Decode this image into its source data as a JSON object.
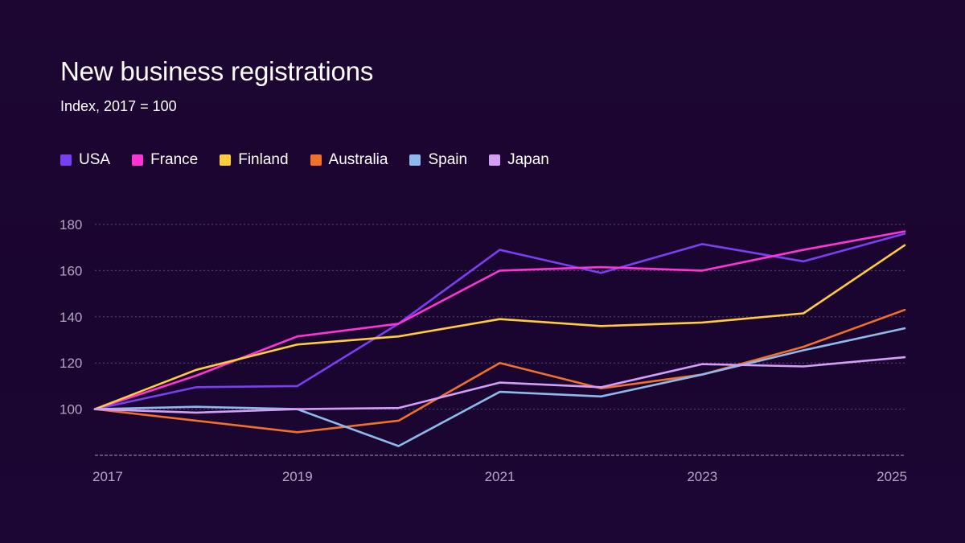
{
  "chart_data": {
    "type": "line",
    "title": "New business registrations",
    "subtitle": "Index, 2017 = 100",
    "x": [
      2017,
      2018,
      2019,
      2020,
      2021,
      2022,
      2023,
      2024,
      2025
    ],
    "x_tick_labels": [
      "2017",
      "2019",
      "2021",
      "2023",
      "2025"
    ],
    "y_tick_labels": [
      "100",
      "120",
      "140",
      "160",
      "180"
    ],
    "ylim": [
      80,
      180
    ],
    "xlim": [
      2017,
      2025
    ],
    "grid": true,
    "legend_position": "top-left",
    "series": [
      {
        "name": "USA",
        "color": "#7a3ff2",
        "values": [
          100,
          109.5,
          110,
          137,
          169,
          159,
          171.5,
          164,
          176
        ]
      },
      {
        "name": "France",
        "color": "#ff34d6",
        "values": [
          100,
          114.5,
          131.5,
          137,
          160,
          161.5,
          160,
          169,
          177
        ]
      },
      {
        "name": "Finland",
        "color": "#ffcc3b",
        "values": [
          100,
          117,
          128,
          131.5,
          139,
          136,
          137.5,
          141.5,
          171
        ]
      },
      {
        "name": "Australia",
        "color": "#f0702c",
        "values": [
          100,
          95,
          90,
          95,
          120,
          109,
          115,
          127,
          143
        ]
      },
      {
        "name": "Spain",
        "color": "#8fb9ec",
        "values": [
          100,
          101,
          100,
          84,
          107.5,
          105.5,
          115,
          125.5,
          135
        ]
      },
      {
        "name": "Japan",
        "color": "#d49ef7",
        "values": [
          100,
          98.5,
          100,
          100.5,
          111.5,
          109.5,
          119.5,
          118.5,
          122.5
        ]
      }
    ]
  }
}
